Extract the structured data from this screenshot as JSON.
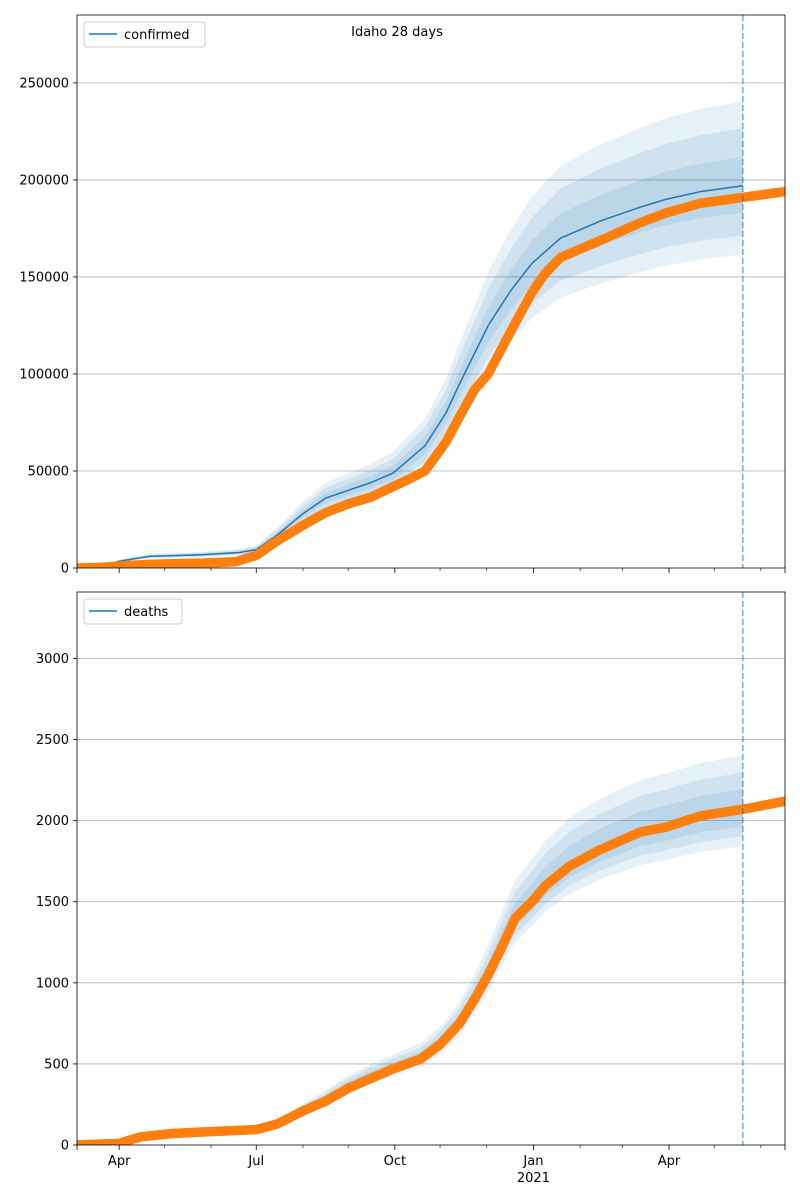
{
  "chart_data": [
    {
      "type": "line",
      "title": "Idaho 28 days",
      "x_unit": "days since 2020-03-04",
      "xlim": [
        0,
        470
      ],
      "ylim": [
        0,
        285000
      ],
      "yticks": [
        0,
        50000,
        100000,
        150000,
        200000,
        250000
      ],
      "ytick_labels": [
        "0",
        "50000",
        "100000",
        "150000",
        "200000",
        "250000"
      ],
      "grid": "y",
      "legend": {
        "placement": "top-left",
        "entries": [
          "confirmed"
        ]
      },
      "forecast_start_day": 442,
      "observed": {
        "x": [
          0,
          15,
          28,
          48,
          82,
          105,
          119,
          133,
          150,
          165,
          180,
          195,
          210,
          221,
          231,
          245,
          254,
          264,
          273,
          288,
          302,
          311,
          321,
          348,
          374,
          391,
          414,
          442,
          470
        ],
        "y": [
          0,
          300,
          1000,
          1900,
          2500,
          3200,
          6500,
          14000,
          22000,
          28500,
          33000,
          36500,
          42000,
          46000,
          50000,
          65000,
          78000,
          92000,
          100000,
          122000,
          142000,
          152000,
          160000,
          169000,
          178000,
          183000,
          188000,
          191000,
          194000
        ]
      },
      "model_median": {
        "x": [
          15,
          28,
          48,
          82,
          108,
          119,
          133,
          150,
          165,
          180,
          195,
          210,
          231,
          245,
          254,
          273,
          288,
          302,
          321,
          348,
          374,
          391,
          414,
          442
        ],
        "y": [
          0,
          3500,
          6000,
          6800,
          8000,
          9500,
          17000,
          28000,
          36000,
          40000,
          44000,
          49000,
          63000,
          80000,
          95000,
          125000,
          143000,
          157000,
          170000,
          179000,
          186000,
          190000,
          194000,
          197000
        ]
      },
      "bands_relative": [
        {
          "low": 0.93,
          "high": 1.075
        },
        {
          "low": 0.87,
          "high": 1.15
        },
        {
          "low": 0.82,
          "high": 1.22
        }
      ]
    },
    {
      "type": "line",
      "xlim": [
        0,
        470
      ],
      "ylim": [
        0,
        3410
      ],
      "yticks": [
        0,
        500,
        1000,
        1500,
        2000,
        2500,
        3000
      ],
      "ytick_labels": [
        "0",
        "500",
        "1000",
        "1500",
        "2000",
        "2500",
        "3000"
      ],
      "grid": "y",
      "legend": {
        "placement": "top-left",
        "entries": [
          "deaths"
        ]
      },
      "forecast_start_day": 442,
      "observed": {
        "x": [
          0,
          28,
          42,
          62,
          82,
          119,
          133,
          150,
          165,
          180,
          195,
          210,
          228,
          241,
          254,
          264,
          273,
          281,
          291,
          302,
          311,
          327,
          347,
          374,
          391,
          414,
          442,
          470
        ],
        "y": [
          0,
          10,
          50,
          70,
          80,
          95,
          130,
          210,
          270,
          350,
          410,
          470,
          530,
          620,
          750,
          900,
          1050,
          1200,
          1400,
          1500,
          1600,
          1720,
          1820,
          1930,
          1960,
          2030,
          2070,
          2120
        ]
      },
      "model_median": {
        "x": [
          128,
          150,
          165,
          180,
          195,
          210,
          228,
          241,
          254,
          264,
          273,
          281,
          291,
          302,
          311,
          327,
          347,
          374,
          391,
          414,
          442
        ],
        "y": [
          110,
          220,
          290,
          370,
          430,
          480,
          540,
          630,
          760,
          910,
          1060,
          1220,
          1410,
          1520,
          1620,
          1740,
          1840,
          1940,
          1975,
          2030,
          2070
        ]
      },
      "bands_relative": [
        {
          "low": 0.95,
          "high": 1.06
        },
        {
          "low": 0.92,
          "high": 1.11
        },
        {
          "low": 0.89,
          "high": 1.16
        }
      ]
    }
  ],
  "xaxis": {
    "major_ticks": [
      {
        "day": 28,
        "label": "Apr"
      },
      {
        "day": 119,
        "label": "Jul"
      },
      {
        "day": 211,
        "label": "Oct"
      },
      {
        "day": 303,
        "label": "Jan"
      },
      {
        "day": 393,
        "label": "Apr"
      }
    ],
    "minor_ticks": [
      58,
      89,
      150,
      180,
      241,
      272,
      334,
      362,
      423,
      454
    ],
    "year_label": "2021",
    "year_label_day": 303
  },
  "colors": {
    "model": "#1f77b4",
    "observed": "#ff7f0e",
    "grid": "#b0b0b0"
  }
}
